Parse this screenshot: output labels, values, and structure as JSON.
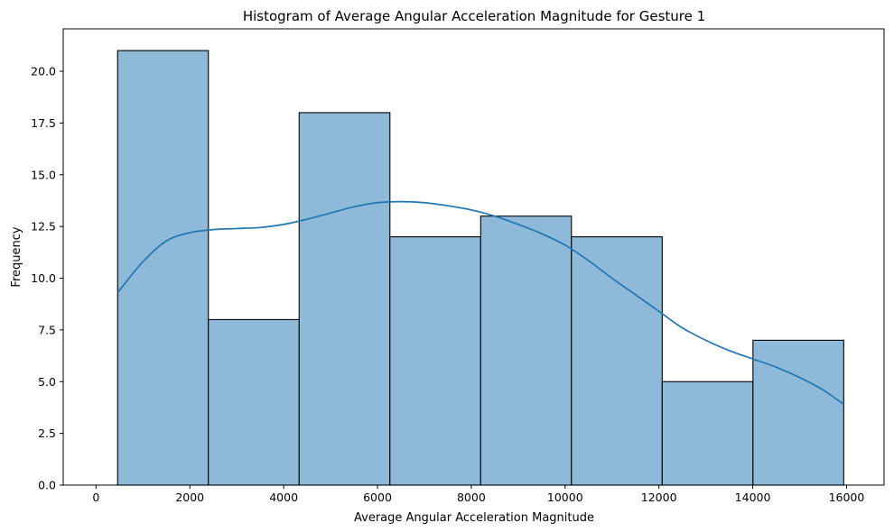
{
  "chart_data": {
    "type": "bar",
    "subtype": "histogram-with-kde",
    "title": "Histogram of Average Angular Acceleration Magnitude for Gesture 1",
    "xlabel": "Average Angular Acceleration Magnitude",
    "ylabel": "Frequency",
    "xlim": [
      -700,
      16800
    ],
    "ylim": [
      0,
      22.05
    ],
    "xticks": [
      0,
      2000,
      4000,
      6000,
      8000,
      10000,
      12000,
      14000,
      16000
    ],
    "xtick_labels": [
      "0",
      "2000",
      "4000",
      "6000",
      "8000",
      "10000",
      "12000",
      "14000",
      "16000"
    ],
    "yticks": [
      0,
      2.5,
      5,
      7.5,
      10,
      12.5,
      15,
      17.5,
      20
    ],
    "ytick_labels": [
      "0.0",
      "2.5",
      "5.0",
      "7.5",
      "10.0",
      "12.5",
      "15.0",
      "17.5",
      "20.0"
    ],
    "bin_edges": [
      460,
      2395,
      4330,
      6265,
      8200,
      10135,
      12070,
      14005,
      15940
    ],
    "counts": [
      21,
      8,
      18,
      12,
      13,
      12,
      5,
      7
    ],
    "kde": {
      "x": [
        460,
        1000,
        1500,
        2000,
        2500,
        3000,
        3500,
        4000,
        4500,
        5000,
        5500,
        6000,
        6500,
        7000,
        7500,
        8000,
        8500,
        9000,
        9500,
        10000,
        10500,
        11000,
        11500,
        12000,
        12500,
        13000,
        13500,
        14000,
        14500,
        15000,
        15500,
        15940
      ],
      "y": [
        9.3,
        10.8,
        11.8,
        12.2,
        12.35,
        12.4,
        12.45,
        12.6,
        12.85,
        13.15,
        13.45,
        13.65,
        13.7,
        13.65,
        13.5,
        13.3,
        13.0,
        12.6,
        12.15,
        11.6,
        10.85,
        10.0,
        9.2,
        8.4,
        7.6,
        7.0,
        6.5,
        6.1,
        5.7,
        5.2,
        4.6,
        3.9
      ]
    },
    "bar_color": "#8fb9d9",
    "bar_edge_color": "#000000",
    "kde_color": "#1f77b4",
    "grid": false,
    "legend": "none"
  }
}
